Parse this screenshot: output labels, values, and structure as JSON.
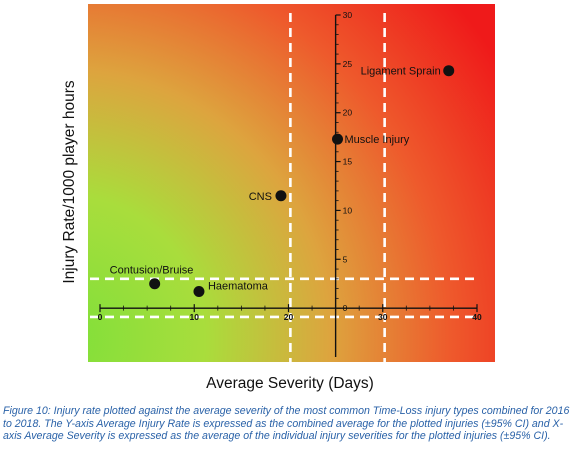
{
  "chart_data": {
    "type": "scatter",
    "xlabel": "Average Severity (Days)",
    "ylabel": "Injury Rate/1000 player hours",
    "xlim": [
      0,
      40
    ],
    "ylim": [
      -5,
      30
    ],
    "x_ticks": [
      0,
      10,
      20,
      30,
      40
    ],
    "x_tick_labels": [
      "0",
      "10",
      "20",
      "30",
      "40"
    ],
    "y_ticks": [
      0,
      5,
      10,
      15,
      20,
      25,
      30
    ],
    "y_tick_labels": [
      "0",
      "5",
      "10",
      "15",
      "20",
      "25",
      "30"
    ],
    "points": [
      {
        "label": "Ligament Sprain",
        "x": 37,
        "y": 24.3
      },
      {
        "label": "Muscle Injury",
        "x": 25.2,
        "y": 17.3
      },
      {
        "label": "CNS",
        "x": 19.2,
        "y": 11.5
      },
      {
        "label": "Contusion/Bruise",
        "x": 5.8,
        "y": 2.5
      },
      {
        "label": "Haematoma",
        "x": 10.5,
        "y": 1.7
      }
    ],
    "reference_lines": {
      "vertical_dashed_x": [
        20.2,
        30.2
      ],
      "horizontal_dashed_y": [
        3.0,
        -0.9
      ]
    },
    "y_axis_position_x": 25,
    "background": {
      "type": "gradient",
      "colors": {
        "low": "#7ee03a",
        "mid": "#dda43e",
        "high": "#ef1a1a"
      }
    },
    "caption": "Figure 10: Injury rate plotted against the average severity of the most common Time-Loss injury types combined for 2016 to 2018. The Y-axis Average Injury Rate is expressed as the combined average for the plotted injuries (±95% CI) and X-axis Average Severity is expressed as the average of the individual injury severities for the plotted injuries (±95% CI)."
  }
}
